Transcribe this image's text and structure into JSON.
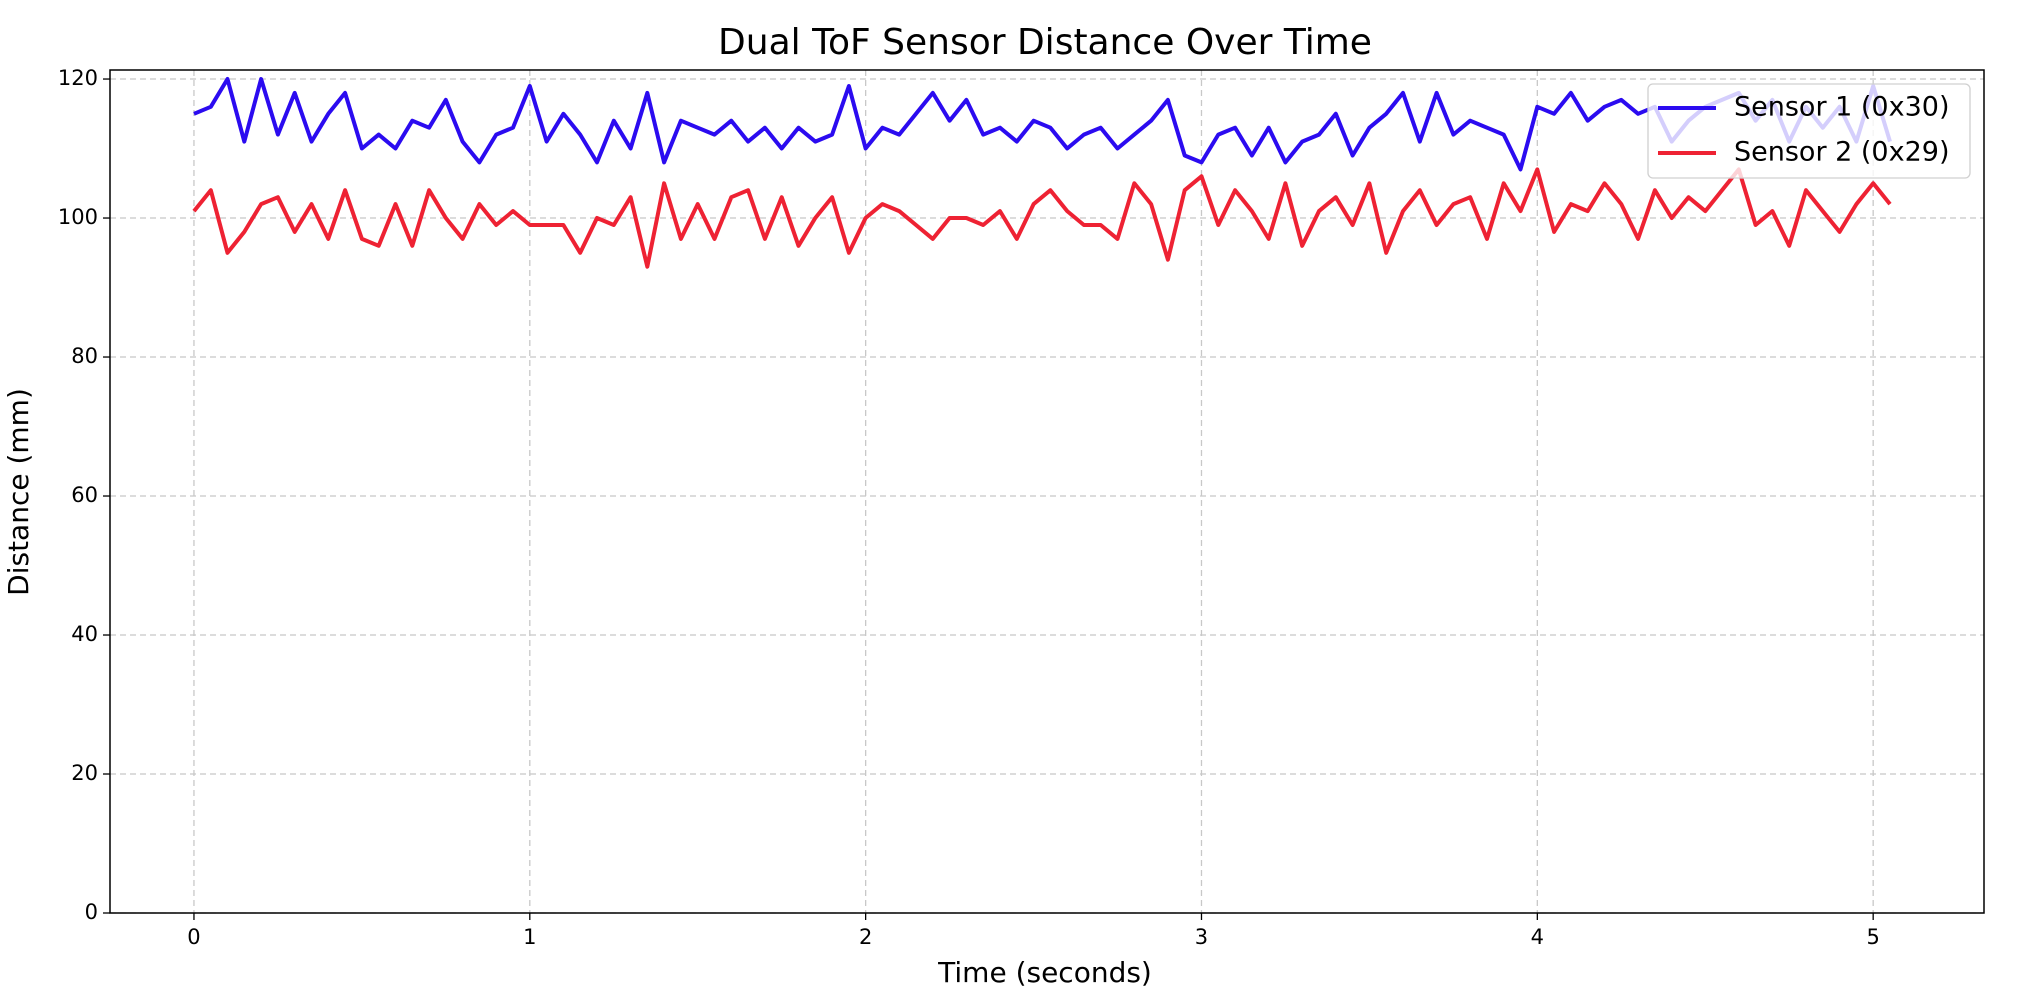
{
  "chart_data": {
    "type": "line",
    "title": "Dual ToF Sensor Distance Over Time",
    "xlabel": "Time (seconds)",
    "ylabel": "Distance (mm)",
    "x": [
      0,
      0.05,
      0.1,
      0.15,
      0.2,
      0.25,
      0.3,
      0.35,
      0.4,
      0.45,
      0.5,
      0.55,
      0.6,
      0.65,
      0.7,
      0.75,
      0.8,
      0.85,
      0.9,
      0.95,
      1,
      1.05,
      1.1,
      1.15,
      1.2,
      1.25,
      1.3,
      1.35,
      1.4,
      1.45,
      1.5,
      1.55,
      1.6,
      1.65,
      1.7,
      1.75,
      1.8,
      1.85,
      1.9,
      1.95,
      2,
      2.05,
      2.1,
      2.15,
      2.2,
      2.25,
      2.3,
      2.35,
      2.4,
      2.45,
      2.5,
      2.55,
      2.6,
      2.65,
      2.7,
      2.75,
      2.8,
      2.85,
      2.9,
      2.95,
      3,
      3.05,
      3.1,
      3.15,
      3.2,
      3.25,
      3.3,
      3.35,
      3.4,
      3.45,
      3.5,
      3.55,
      3.6,
      3.65,
      3.7,
      3.75,
      3.8,
      3.85,
      3.9,
      3.95,
      4,
      4.05,
      4.1,
      4.15,
      4.2,
      4.25,
      4.3,
      4.35,
      4.4,
      4.45,
      4.5,
      4.55,
      4.6,
      4.65,
      4.7,
      4.75,
      4.8,
      4.85,
      4.9,
      4.95,
      5,
      5.05
    ],
    "series": [
      {
        "name": "Sensor 1 (0x30)",
        "color": "#2b0bf0",
        "values": [
          115,
          116,
          120,
          111,
          120,
          112,
          118,
          111,
          115,
          118,
          110,
          112,
          110,
          114,
          113,
          117,
          111,
          108,
          112,
          113,
          119,
          111,
          115,
          112,
          108,
          114,
          110,
          118,
          108,
          114,
          113,
          112,
          114,
          111,
          113,
          110,
          113,
          111,
          112,
          119,
          110,
          113,
          112,
          115,
          118,
          114,
          117,
          112,
          113,
          111,
          114,
          113,
          110,
          112,
          113,
          110,
          112,
          114,
          117,
          109,
          108,
          112,
          113,
          109,
          113,
          108,
          111,
          112,
          115,
          109,
          113,
          115,
          118,
          111,
          118,
          112,
          114,
          113,
          112,
          107,
          116,
          115,
          118,
          114,
          116,
          117,
          115,
          116,
          111,
          114,
          116,
          117,
          118,
          114,
          117,
          111,
          116,
          113,
          116,
          111,
          119,
          111
        ]
      },
      {
        "name": "Sensor 2 (0x29)",
        "color": "#ee2233",
        "values": [
          101,
          104,
          95,
          98,
          102,
          103,
          98,
          102,
          97,
          104,
          97,
          96,
          102,
          96,
          104,
          100,
          97,
          102,
          99,
          101,
          99,
          99,
          99,
          95,
          100,
          99,
          103,
          93,
          105,
          97,
          102,
          97,
          103,
          104,
          97,
          103,
          96,
          100,
          103,
          95,
          100,
          102,
          101,
          99,
          97,
          100,
          100,
          99,
          101,
          97,
          102,
          104,
          101,
          99,
          99,
          97,
          105,
          102,
          94,
          104,
          106,
          99,
          104,
          101,
          97,
          105,
          96,
          101,
          103,
          99,
          105,
          95,
          101,
          104,
          99,
          102,
          103,
          97,
          105,
          101,
          107,
          98,
          102,
          101,
          105,
          102,
          97,
          104,
          100,
          103,
          101,
          104,
          107,
          99,
          101,
          96,
          104,
          101,
          98,
          102,
          105,
          102
        ]
      }
    ],
    "xlim": [
      -0.25,
      5.33
    ],
    "ylim": [
      0,
      121.3
    ],
    "xticks": [
      0,
      1,
      2,
      3,
      4,
      5
    ],
    "yticks": [
      0,
      20,
      40,
      60,
      80,
      100,
      120
    ],
    "grid": true,
    "legend": "upper right"
  }
}
